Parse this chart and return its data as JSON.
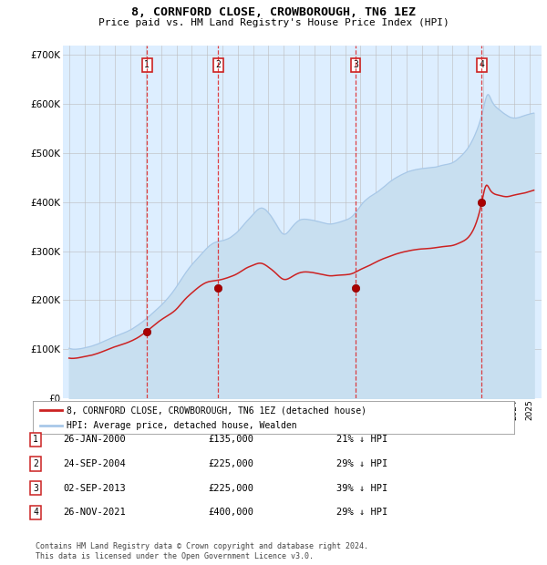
{
  "title": "8, CORNFORD CLOSE, CROWBOROUGH, TN6 1EZ",
  "subtitle": "Price paid vs. HM Land Registry's House Price Index (HPI)",
  "hpi_label": "HPI: Average price, detached house, Wealden",
  "property_label": "8, CORNFORD CLOSE, CROWBOROUGH, TN6 1EZ (detached house)",
  "footer_line1": "Contains HM Land Registry data © Crown copyright and database right 2024.",
  "footer_line2": "This data is licensed under the Open Government Licence v3.0.",
  "hpi_color": "#a8c8e8",
  "hpi_fill_color": "#c8dff0",
  "property_color": "#cc2222",
  "bg_color": "#ddeeff",
  "grid_color": "#bbbbbb",
  "ylim": [
    0,
    720000
  ],
  "yticks": [
    0,
    100000,
    200000,
    300000,
    400000,
    500000,
    600000,
    700000
  ],
  "ytick_labels": [
    "£0",
    "£100K",
    "£200K",
    "£300K",
    "£400K",
    "£500K",
    "£600K",
    "£700K"
  ],
  "xlim_start": 1994.6,
  "xlim_end": 2025.8,
  "transactions": [
    {
      "num": 1,
      "date": "26-JAN-2000",
      "price": 135000,
      "pct": "21%",
      "year": 2000.08
    },
    {
      "num": 2,
      "date": "24-SEP-2004",
      "price": 225000,
      "pct": "29%",
      "year": 2004.73
    },
    {
      "num": 3,
      "date": "02-SEP-2013",
      "price": 225000,
      "pct": "39%",
      "year": 2013.67
    },
    {
      "num": 4,
      "date": "26-NOV-2021",
      "price": 400000,
      "pct": "29%",
      "year": 2021.9
    }
  ],
  "hpi_keypoints": [
    [
      1995.0,
      102000
    ],
    [
      1995.5,
      100000
    ],
    [
      1996.0,
      103000
    ],
    [
      1996.5,
      107000
    ],
    [
      1997.0,
      113000
    ],
    [
      1997.5,
      120000
    ],
    [
      1998.0,
      127000
    ],
    [
      1998.5,
      133000
    ],
    [
      1999.0,
      140000
    ],
    [
      1999.5,
      150000
    ],
    [
      2000.0,
      162000
    ],
    [
      2000.5,
      176000
    ],
    [
      2001.0,
      190000
    ],
    [
      2001.5,
      207000
    ],
    [
      2002.0,
      228000
    ],
    [
      2002.5,
      252000
    ],
    [
      2003.0,
      273000
    ],
    [
      2003.5,
      290000
    ],
    [
      2004.0,
      307000
    ],
    [
      2004.5,
      318000
    ],
    [
      2005.0,
      322000
    ],
    [
      2005.5,
      328000
    ],
    [
      2006.0,
      340000
    ],
    [
      2006.5,
      358000
    ],
    [
      2007.0,
      375000
    ],
    [
      2007.5,
      388000
    ],
    [
      2008.0,
      378000
    ],
    [
      2008.5,
      355000
    ],
    [
      2009.0,
      335000
    ],
    [
      2009.5,
      348000
    ],
    [
      2010.0,
      363000
    ],
    [
      2010.5,
      365000
    ],
    [
      2011.0,
      362000
    ],
    [
      2011.5,
      358000
    ],
    [
      2012.0,
      355000
    ],
    [
      2012.5,
      358000
    ],
    [
      2013.0,
      363000
    ],
    [
      2013.5,
      372000
    ],
    [
      2014.0,
      392000
    ],
    [
      2014.5,
      408000
    ],
    [
      2015.0,
      418000
    ],
    [
      2015.5,
      430000
    ],
    [
      2016.0,
      443000
    ],
    [
      2016.5,
      452000
    ],
    [
      2017.0,
      460000
    ],
    [
      2017.5,
      465000
    ],
    [
      2018.0,
      468000
    ],
    [
      2018.5,
      470000
    ],
    [
      2019.0,
      472000
    ],
    [
      2019.5,
      476000
    ],
    [
      2020.0,
      480000
    ],
    [
      2020.5,
      492000
    ],
    [
      2021.0,
      510000
    ],
    [
      2021.5,
      540000
    ],
    [
      2022.0,
      590000
    ],
    [
      2022.3,
      620000
    ],
    [
      2022.5,
      610000
    ],
    [
      2023.0,
      590000
    ],
    [
      2023.5,
      578000
    ],
    [
      2024.0,
      572000
    ],
    [
      2024.5,
      575000
    ],
    [
      2025.0,
      580000
    ],
    [
      2025.3,
      582000
    ]
  ],
  "prop_keypoints": [
    [
      1995.0,
      82000
    ],
    [
      1995.5,
      82000
    ],
    [
      1996.0,
      85000
    ],
    [
      1996.5,
      88000
    ],
    [
      1997.0,
      93000
    ],
    [
      1997.5,
      99000
    ],
    [
      1998.0,
      105000
    ],
    [
      1998.5,
      110000
    ],
    [
      1999.0,
      116000
    ],
    [
      1999.5,
      124000
    ],
    [
      2000.0,
      135000
    ],
    [
      2000.5,
      148000
    ],
    [
      2001.0,
      160000
    ],
    [
      2001.5,
      170000
    ],
    [
      2002.0,
      182000
    ],
    [
      2002.5,
      200000
    ],
    [
      2003.0,
      215000
    ],
    [
      2003.5,
      228000
    ],
    [
      2004.0,
      237000
    ],
    [
      2004.5,
      240000
    ],
    [
      2005.0,
      243000
    ],
    [
      2005.5,
      248000
    ],
    [
      2006.0,
      255000
    ],
    [
      2006.5,
      265000
    ],
    [
      2007.0,
      272000
    ],
    [
      2007.5,
      276000
    ],
    [
      2008.0,
      268000
    ],
    [
      2008.5,
      255000
    ],
    [
      2009.0,
      243000
    ],
    [
      2009.5,
      248000
    ],
    [
      2010.0,
      256000
    ],
    [
      2010.5,
      258000
    ],
    [
      2011.0,
      256000
    ],
    [
      2011.5,
      253000
    ],
    [
      2012.0,
      250000
    ],
    [
      2012.5,
      251000
    ],
    [
      2013.0,
      252000
    ],
    [
      2013.5,
      255000
    ],
    [
      2014.0,
      263000
    ],
    [
      2014.5,
      270000
    ],
    [
      2015.0,
      278000
    ],
    [
      2015.5,
      285000
    ],
    [
      2016.0,
      291000
    ],
    [
      2016.5,
      296000
    ],
    [
      2017.0,
      300000
    ],
    [
      2017.5,
      303000
    ],
    [
      2018.0,
      305000
    ],
    [
      2018.5,
      306000
    ],
    [
      2019.0,
      308000
    ],
    [
      2019.5,
      310000
    ],
    [
      2020.0,
      312000
    ],
    [
      2020.5,
      318000
    ],
    [
      2021.0,
      328000
    ],
    [
      2021.5,
      355000
    ],
    [
      2021.9,
      400000
    ],
    [
      2022.0,
      415000
    ],
    [
      2022.2,
      435000
    ],
    [
      2022.4,
      428000
    ],
    [
      2022.6,
      420000
    ],
    [
      2023.0,
      415000
    ],
    [
      2023.5,
      412000
    ],
    [
      2024.0,
      415000
    ],
    [
      2024.5,
      418000
    ],
    [
      2025.0,
      422000
    ],
    [
      2025.3,
      425000
    ]
  ]
}
